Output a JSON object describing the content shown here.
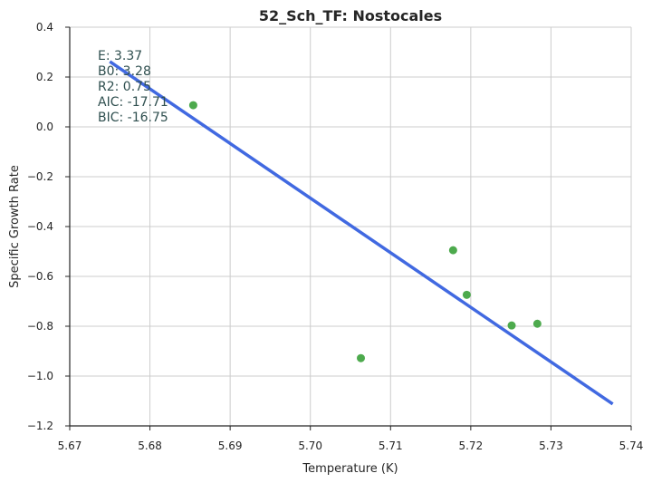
{
  "chart_data": {
    "type": "scatter",
    "title": "52_Sch_TF: Nostocales",
    "xlabel": "Temperature (K)",
    "ylabel": "Specific Growth Rate",
    "xlim": [
      5.67,
      5.74
    ],
    "ylim": [
      -1.2,
      0.4
    ],
    "xticks": [
      5.67,
      5.68,
      5.69,
      5.7,
      5.71,
      5.72,
      5.73,
      5.74
    ],
    "xtick_labels": [
      "5.67",
      "5.68",
      "5.69",
      "5.70",
      "5.71",
      "5.72",
      "5.73",
      "5.74"
    ],
    "yticks": [
      0.4,
      0.2,
      0.0,
      -0.2,
      -0.4,
      -0.6,
      -0.8,
      -1.0,
      -1.2
    ],
    "ytick_labels": [
      "0.4",
      "0.2",
      "0.0",
      "−0.2",
      "−0.4",
      "−0.6",
      "−0.8",
      "−1.0",
      "−1.2"
    ],
    "grid": true,
    "points": {
      "x": [
        5.6854,
        5.7063,
        5.7178,
        5.7195,
        5.7251,
        5.7283
      ],
      "y": [
        0.087,
        -0.928,
        -0.495,
        -0.674,
        -0.797,
        -0.79
      ],
      "color": "#4daa4d"
    },
    "fit_line": {
      "x": [
        5.675,
        5.7377
      ],
      "y": [
        0.262,
        -1.112
      ],
      "color": "#4169e1"
    },
    "annotations": [
      "E:  3.37",
      "B0:  3.28",
      "R2:  0.75",
      "AIC: -17.71",
      "BIC: -16.75"
    ]
  }
}
